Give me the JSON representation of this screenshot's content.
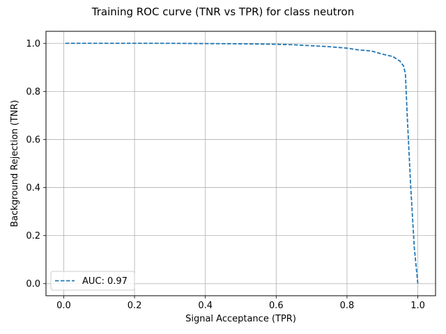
{
  "chart_data": {
    "type": "line",
    "title": "Training ROC curve (TNR vs TPR) for class neutron",
    "xlabel": "Signal Acceptance (TPR)",
    "ylabel": "Background Rejection (TNR)",
    "xlim": [
      -0.05,
      1.05
    ],
    "ylim": [
      -0.05,
      1.05
    ],
    "xticks": [
      0.0,
      0.2,
      0.4,
      0.6,
      0.8,
      1.0
    ],
    "xtick_labels": [
      "0.0",
      "0.2",
      "0.4",
      "0.6",
      "0.8",
      "1.0"
    ],
    "yticks": [
      0.0,
      0.2,
      0.4,
      0.6,
      0.8,
      1.0
    ],
    "ytick_labels": [
      "0.0",
      "0.2",
      "0.4",
      "0.6",
      "0.8",
      "1.0"
    ],
    "grid": true,
    "legend_position": "lower-left",
    "series": [
      {
        "name": "AUC: 0.97",
        "color": "#1f77b4",
        "style": "dashed",
        "x": [
          0.005,
          0.1,
          0.2,
          0.3,
          0.4,
          0.5,
          0.6,
          0.65,
          0.7,
          0.75,
          0.8,
          0.83,
          0.87,
          0.9,
          0.93,
          0.95,
          0.96,
          0.965,
          0.97,
          0.98,
          0.99,
          1.0
        ],
        "y": [
          1.0,
          1.0,
          1.0,
          1.0,
          0.999,
          0.998,
          0.996,
          0.994,
          0.99,
          0.986,
          0.98,
          0.973,
          0.968,
          0.955,
          0.945,
          0.925,
          0.905,
          0.87,
          0.7,
          0.4,
          0.15,
          0.0
        ]
      }
    ]
  }
}
